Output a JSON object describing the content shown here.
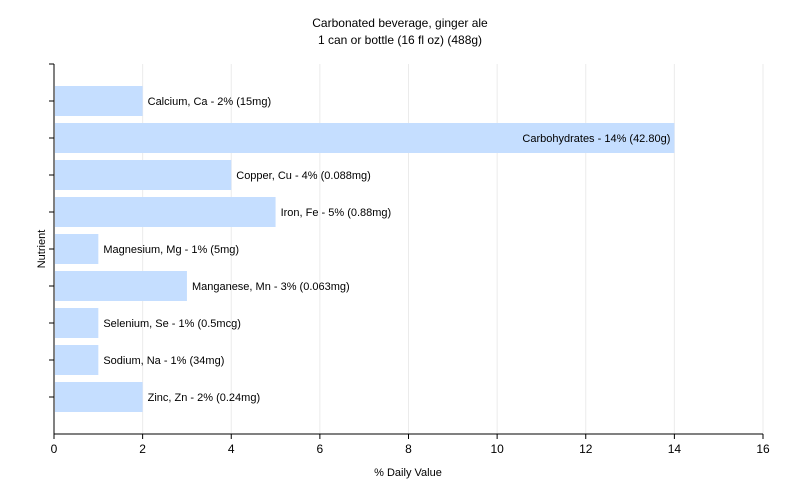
{
  "chart_data": {
    "type": "bar",
    "orientation": "horizontal",
    "title": "Carbonated beverage, ginger ale",
    "subtitle": "1 can or bottle (16 fl oz) (488g)",
    "xlabel": "% Daily Value",
    "ylabel": "Nutrient",
    "xlim": [
      0,
      16
    ],
    "xticks": [
      0,
      2,
      4,
      6,
      8,
      10,
      12,
      14,
      16
    ],
    "grid": true,
    "categories": [
      "Calcium, Ca",
      "Carbohydrates",
      "Copper, Cu",
      "Iron, Fe",
      "Magnesium, Mg",
      "Manganese, Mn",
      "Selenium, Se",
      "Sodium, Na",
      "Zinc, Zn"
    ],
    "values": [
      2,
      14,
      4,
      5,
      1,
      3,
      1,
      1,
      2
    ],
    "labels": [
      "Calcium, Ca - 2% (15mg)",
      "Carbohydrates - 14% (42.80g)",
      "Copper, Cu - 4% (0.088mg)",
      "Iron, Fe - 5% (0.88mg)",
      "Magnesium, Mg - 1% (5mg)",
      "Manganese, Mn - 3% (0.063mg)",
      "Selenium, Se - 1% (0.5mcg)",
      "Sodium, Na - 1% (34mg)",
      "Zinc, Zn - 2% (0.24mg)"
    ],
    "bar_color": "#c5deff"
  }
}
